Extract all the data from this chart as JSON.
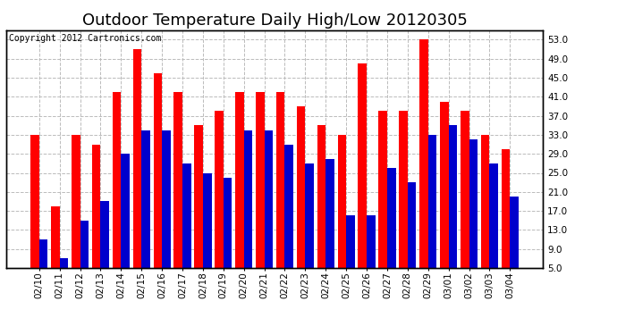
{
  "title": "Outdoor Temperature Daily High/Low 20120305",
  "copyright": "Copyright 2012 Cartronics.com",
  "dates": [
    "02/10",
    "02/11",
    "02/12",
    "02/13",
    "02/14",
    "02/15",
    "02/16",
    "02/17",
    "02/18",
    "02/19",
    "02/20",
    "02/21",
    "02/22",
    "02/23",
    "02/24",
    "02/25",
    "02/26",
    "02/27",
    "02/28",
    "02/29",
    "03/01",
    "03/02",
    "03/03",
    "03/04"
  ],
  "highs": [
    33,
    18,
    33,
    31,
    42,
    51,
    46,
    42,
    35,
    38,
    42,
    42,
    42,
    39,
    35,
    33,
    48,
    38,
    38,
    53,
    40,
    38,
    33,
    30
  ],
  "lows": [
    11,
    7,
    15,
    19,
    29,
    34,
    34,
    27,
    25,
    24,
    34,
    34,
    31,
    27,
    28,
    16,
    16,
    26,
    23,
    33,
    35,
    32,
    27,
    20
  ],
  "high_color": "#ff0000",
  "low_color": "#0000cc",
  "bg_color": "#ffffff",
  "grid_color": "#bbbbbb",
  "ylim_min": 5.0,
  "ylim_max": 55.0,
  "yticks": [
    5.0,
    9.0,
    13.0,
    17.0,
    21.0,
    25.0,
    29.0,
    33.0,
    37.0,
    41.0,
    45.0,
    49.0,
    53.0
  ],
  "title_fontsize": 13,
  "copyright_fontsize": 7,
  "tick_fontsize": 7.5,
  "bar_width": 0.42
}
